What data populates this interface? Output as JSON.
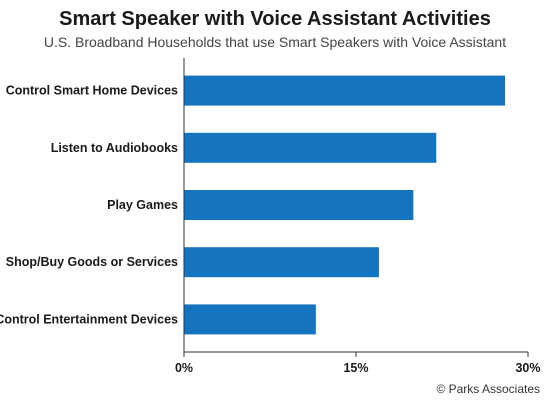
{
  "title": "Smart Speaker with Voice Assistant Activities",
  "subtitle": "U.S. Broadband Households that use Smart Speakers with Voice Assistant",
  "source": "© Parks Associates",
  "colors": {
    "bar": "#1574bf",
    "axis": "#333333"
  },
  "chart_data": {
    "type": "bar",
    "orientation": "horizontal",
    "categories": [
      "Control Smart Home Devices",
      "Listen to Audiobooks",
      "Play Games",
      "Shop/Buy Goods or Services",
      "Control Entertainment Devices"
    ],
    "values": [
      28,
      22,
      20,
      17,
      11.5
    ],
    "xlim": [
      0,
      30
    ],
    "xticks": [
      "0%",
      "15%",
      "30%"
    ],
    "xtick_values": [
      0,
      15,
      30
    ],
    "grid": false,
    "legend": "none"
  }
}
